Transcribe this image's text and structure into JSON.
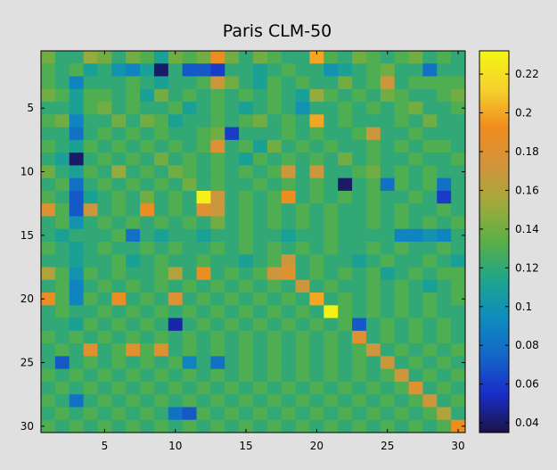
{
  "chart_data": {
    "type": "heatmap",
    "title": "Paris CLM-50",
    "xlabel": "",
    "ylabel": "",
    "xlim": [
      1,
      30
    ],
    "ylim": [
      1,
      30
    ],
    "x_ticks": [
      "5",
      "10",
      "15",
      "20",
      "25",
      "30"
    ],
    "y_ticks": [
      "5",
      "10",
      "15",
      "20",
      "25",
      "30"
    ],
    "colorbar": {
      "range": [
        0.035,
        0.232
      ],
      "ticks": [
        "0.04",
        "0.06",
        "0.08",
        "0.1",
        "0.12",
        "0.14",
        "0.16",
        "0.18",
        "0.2",
        "0.22"
      ],
      "colormap": [
        "#1a1446",
        "#1a2cc8",
        "#1466c8",
        "#0e8cbe",
        "#1ea58c",
        "#5aaf46",
        "#a0aa3c",
        "#d2943c",
        "#f08c1e",
        "#f5d22d",
        "#f5f514"
      ]
    },
    "values": [
      [
        0.14,
        0.12,
        0.12,
        0.15,
        0.14,
        0.12,
        0.14,
        0.13,
        0.11,
        0.14,
        0.13,
        0.14,
        0.19,
        0.14,
        0.12,
        0.14,
        0.13,
        0.12,
        0.12,
        0.2,
        0.13,
        0.12,
        0.14,
        0.13,
        0.12,
        0.13,
        0.14,
        0.12,
        0.13,
        0.12
      ],
      [
        0.13,
        0.12,
        0.13,
        0.11,
        0.12,
        0.1,
        0.09,
        0.11,
        0.04,
        0.12,
        0.07,
        0.07,
        0.06,
        0.12,
        0.12,
        0.11,
        0.12,
        0.13,
        0.12,
        0.12,
        0.1,
        0.11,
        0.12,
        0.13,
        0.14,
        0.12,
        0.12,
        0.08,
        0.12,
        0.12
      ],
      [
        0.13,
        0.12,
        0.09,
        0.12,
        0.12,
        0.12,
        0.13,
        0.12,
        0.11,
        0.12,
        0.12,
        0.13,
        0.17,
        0.14,
        0.12,
        0.11,
        0.13,
        0.12,
        0.13,
        0.12,
        0.12,
        0.14,
        0.12,
        0.13,
        0.17,
        0.12,
        0.13,
        0.13,
        0.13,
        0.13
      ],
      [
        0.14,
        0.13,
        0.11,
        0.13,
        0.13,
        0.12,
        0.13,
        0.11,
        0.14,
        0.12,
        0.13,
        0.12,
        0.13,
        0.12,
        0.13,
        0.12,
        0.13,
        0.12,
        0.11,
        0.15,
        0.13,
        0.12,
        0.13,
        0.12,
        0.14,
        0.13,
        0.12,
        0.12,
        0.13,
        0.14
      ],
      [
        0.12,
        0.12,
        0.11,
        0.13,
        0.14,
        0.12,
        0.13,
        0.12,
        0.12,
        0.13,
        0.11,
        0.12,
        0.13,
        0.12,
        0.11,
        0.12,
        0.13,
        0.12,
        0.1,
        0.12,
        0.12,
        0.13,
        0.12,
        0.13,
        0.12,
        0.13,
        0.14,
        0.12,
        0.12,
        0.13
      ],
      [
        0.13,
        0.14,
        0.09,
        0.12,
        0.12,
        0.14,
        0.12,
        0.14,
        0.13,
        0.11,
        0.12,
        0.12,
        0.13,
        0.12,
        0.13,
        0.14,
        0.12,
        0.13,
        0.12,
        0.2,
        0.12,
        0.13,
        0.12,
        0.12,
        0.12,
        0.13,
        0.12,
        0.14,
        0.12,
        0.12
      ],
      [
        0.12,
        0.12,
        0.08,
        0.12,
        0.13,
        0.12,
        0.13,
        0.12,
        0.13,
        0.12,
        0.12,
        0.13,
        0.14,
        0.06,
        0.12,
        0.12,
        0.12,
        0.13,
        0.12,
        0.13,
        0.12,
        0.12,
        0.13,
        0.17,
        0.12,
        0.12,
        0.13,
        0.12,
        0.12,
        0.12
      ],
      [
        0.13,
        0.12,
        0.11,
        0.13,
        0.12,
        0.13,
        0.12,
        0.13,
        0.12,
        0.13,
        0.12,
        0.13,
        0.18,
        0.12,
        0.13,
        0.11,
        0.14,
        0.12,
        0.13,
        0.12,
        0.13,
        0.12,
        0.12,
        0.13,
        0.12,
        0.13,
        0.12,
        0.13,
        0.13,
        0.12
      ],
      [
        0.12,
        0.11,
        0.04,
        0.12,
        0.13,
        0.12,
        0.13,
        0.12,
        0.14,
        0.12,
        0.13,
        0.12,
        0.13,
        0.12,
        0.11,
        0.13,
        0.12,
        0.13,
        0.12,
        0.13,
        0.12,
        0.14,
        0.12,
        0.13,
        0.12,
        0.12,
        0.13,
        0.12,
        0.12,
        0.13
      ],
      [
        0.14,
        0.12,
        0.11,
        0.13,
        0.12,
        0.15,
        0.12,
        0.13,
        0.12,
        0.14,
        0.13,
        0.12,
        0.13,
        0.12,
        0.13,
        0.12,
        0.13,
        0.17,
        0.12,
        0.17,
        0.12,
        0.12,
        0.13,
        0.14,
        0.12,
        0.13,
        0.12,
        0.13,
        0.12,
        0.12
      ],
      [
        0.12,
        0.13,
        0.08,
        0.12,
        0.13,
        0.12,
        0.13,
        0.12,
        0.13,
        0.12,
        0.14,
        0.12,
        0.13,
        0.12,
        0.12,
        0.13,
        0.12,
        0.13,
        0.12,
        0.13,
        0.12,
        0.04,
        0.12,
        0.13,
        0.08,
        0.13,
        0.12,
        0.13,
        0.08,
        0.12
      ],
      [
        0.13,
        0.12,
        0.07,
        0.11,
        0.12,
        0.13,
        0.12,
        0.14,
        0.12,
        0.13,
        0.12,
        0.23,
        0.17,
        0.12,
        0.13,
        0.12,
        0.13,
        0.19,
        0.12,
        0.13,
        0.12,
        0.13,
        0.12,
        0.13,
        0.12,
        0.12,
        0.13,
        0.12,
        0.06,
        0.12
      ],
      [
        0.18,
        0.13,
        0.07,
        0.17,
        0.12,
        0.13,
        0.12,
        0.19,
        0.12,
        0.13,
        0.12,
        0.18,
        0.17,
        0.12,
        0.13,
        0.12,
        0.13,
        0.12,
        0.13,
        0.12,
        0.13,
        0.12,
        0.12,
        0.13,
        0.12,
        0.13,
        0.12,
        0.12,
        0.13,
        0.12
      ],
      [
        0.12,
        0.13,
        0.1,
        0.12,
        0.13,
        0.12,
        0.13,
        0.12,
        0.13,
        0.12,
        0.13,
        0.12,
        0.14,
        0.12,
        0.13,
        0.12,
        0.13,
        0.12,
        0.13,
        0.12,
        0.13,
        0.12,
        0.12,
        0.13,
        0.12,
        0.13,
        0.12,
        0.13,
        0.12,
        0.13
      ],
      [
        0.12,
        0.11,
        0.12,
        0.12,
        0.12,
        0.13,
        0.08,
        0.12,
        0.11,
        0.12,
        0.12,
        0.11,
        0.12,
        0.12,
        0.13,
        0.12,
        0.12,
        0.11,
        0.12,
        0.12,
        0.13,
        0.12,
        0.12,
        0.12,
        0.12,
        0.09,
        0.09,
        0.1,
        0.09,
        0.12
      ],
      [
        0.13,
        0.12,
        0.11,
        0.12,
        0.13,
        0.12,
        0.12,
        0.13,
        0.12,
        0.13,
        0.12,
        0.12,
        0.13,
        0.12,
        0.13,
        0.12,
        0.13,
        0.12,
        0.13,
        0.12,
        0.13,
        0.12,
        0.12,
        0.13,
        0.12,
        0.13,
        0.12,
        0.12,
        0.13,
        0.12
      ],
      [
        0.12,
        0.12,
        0.11,
        0.12,
        0.12,
        0.13,
        0.11,
        0.12,
        0.13,
        0.12,
        0.12,
        0.13,
        0.12,
        0.12,
        0.11,
        0.12,
        0.13,
        0.17,
        0.12,
        0.13,
        0.12,
        0.12,
        0.11,
        0.12,
        0.13,
        0.12,
        0.12,
        0.13,
        0.12,
        0.11
      ],
      [
        0.16,
        0.13,
        0.1,
        0.13,
        0.12,
        0.13,
        0.12,
        0.12,
        0.13,
        0.16,
        0.12,
        0.19,
        0.12,
        0.13,
        0.12,
        0.13,
        0.17,
        0.18,
        0.12,
        0.13,
        0.12,
        0.13,
        0.12,
        0.13,
        0.11,
        0.12,
        0.13,
        0.12,
        0.13,
        0.13
      ],
      [
        0.12,
        0.13,
        0.09,
        0.12,
        0.13,
        0.12,
        0.13,
        0.12,
        0.13,
        0.12,
        0.13,
        0.12,
        0.13,
        0.12,
        0.13,
        0.12,
        0.13,
        0.12,
        0.17,
        0.12,
        0.13,
        0.12,
        0.12,
        0.13,
        0.12,
        0.13,
        0.12,
        0.11,
        0.12,
        0.13
      ],
      [
        0.19,
        0.13,
        0.09,
        0.13,
        0.12,
        0.19,
        0.12,
        0.13,
        0.12,
        0.18,
        0.12,
        0.13,
        0.12,
        0.13,
        0.12,
        0.13,
        0.12,
        0.13,
        0.12,
        0.2,
        0.12,
        0.13,
        0.12,
        0.13,
        0.12,
        0.13,
        0.12,
        0.13,
        0.12,
        0.13
      ],
      [
        0.12,
        0.13,
        0.12,
        0.12,
        0.13,
        0.12,
        0.13,
        0.12,
        0.13,
        0.12,
        0.13,
        0.12,
        0.13,
        0.12,
        0.13,
        0.12,
        0.13,
        0.12,
        0.13,
        0.12,
        0.23,
        0.13,
        0.12,
        0.13,
        0.12,
        0.13,
        0.12,
        0.13,
        0.12,
        0.12
      ],
      [
        0.12,
        0.12,
        0.11,
        0.13,
        0.12,
        0.13,
        0.12,
        0.13,
        0.12,
        0.05,
        0.12,
        0.13,
        0.12,
        0.13,
        0.12,
        0.13,
        0.12,
        0.13,
        0.12,
        0.13,
        0.12,
        0.13,
        0.07,
        0.12,
        0.13,
        0.12,
        0.13,
        0.12,
        0.13,
        0.12
      ],
      [
        0.13,
        0.12,
        0.13,
        0.12,
        0.13,
        0.12,
        0.13,
        0.12,
        0.13,
        0.12,
        0.13,
        0.12,
        0.13,
        0.12,
        0.13,
        0.12,
        0.13,
        0.12,
        0.13,
        0.12,
        0.13,
        0.12,
        0.18,
        0.12,
        0.13,
        0.12,
        0.13,
        0.12,
        0.13,
        0.12
      ],
      [
        0.12,
        0.13,
        0.12,
        0.18,
        0.12,
        0.13,
        0.18,
        0.13,
        0.18,
        0.12,
        0.13,
        0.12,
        0.13,
        0.12,
        0.13,
        0.12,
        0.13,
        0.12,
        0.13,
        0.12,
        0.13,
        0.12,
        0.13,
        0.17,
        0.12,
        0.13,
        0.12,
        0.13,
        0.12,
        0.13
      ],
      [
        0.12,
        0.07,
        0.12,
        0.13,
        0.12,
        0.13,
        0.12,
        0.13,
        0.12,
        0.13,
        0.09,
        0.12,
        0.08,
        0.12,
        0.13,
        0.12,
        0.13,
        0.12,
        0.13,
        0.12,
        0.13,
        0.12,
        0.13,
        0.12,
        0.17,
        0.12,
        0.13,
        0.12,
        0.13,
        0.12
      ],
      [
        0.13,
        0.12,
        0.13,
        0.12,
        0.13,
        0.12,
        0.13,
        0.12,
        0.13,
        0.12,
        0.13,
        0.12,
        0.13,
        0.12,
        0.13,
        0.12,
        0.13,
        0.12,
        0.13,
        0.12,
        0.13,
        0.12,
        0.13,
        0.12,
        0.13,
        0.17,
        0.12,
        0.13,
        0.12,
        0.13
      ],
      [
        0.12,
        0.13,
        0.12,
        0.13,
        0.12,
        0.13,
        0.12,
        0.13,
        0.12,
        0.13,
        0.12,
        0.13,
        0.12,
        0.13,
        0.12,
        0.13,
        0.12,
        0.13,
        0.12,
        0.13,
        0.12,
        0.13,
        0.12,
        0.13,
        0.12,
        0.13,
        0.18,
        0.12,
        0.13,
        0.12
      ],
      [
        0.13,
        0.12,
        0.08,
        0.12,
        0.13,
        0.12,
        0.13,
        0.12,
        0.13,
        0.12,
        0.13,
        0.12,
        0.13,
        0.12,
        0.13,
        0.12,
        0.13,
        0.12,
        0.13,
        0.12,
        0.13,
        0.12,
        0.13,
        0.12,
        0.13,
        0.12,
        0.13,
        0.17,
        0.12,
        0.13
      ],
      [
        0.12,
        0.13,
        0.12,
        0.13,
        0.12,
        0.13,
        0.12,
        0.13,
        0.12,
        0.08,
        0.07,
        0.13,
        0.12,
        0.13,
        0.12,
        0.13,
        0.12,
        0.13,
        0.12,
        0.13,
        0.12,
        0.13,
        0.12,
        0.13,
        0.12,
        0.13,
        0.12,
        0.13,
        0.16,
        0.12
      ],
      [
        0.13,
        0.12,
        0.13,
        0.12,
        0.13,
        0.12,
        0.13,
        0.12,
        0.13,
        0.12,
        0.13,
        0.12,
        0.13,
        0.12,
        0.13,
        0.12,
        0.13,
        0.12,
        0.13,
        0.12,
        0.13,
        0.12,
        0.13,
        0.12,
        0.13,
        0.12,
        0.13,
        0.12,
        0.13,
        0.19
      ]
    ]
  }
}
